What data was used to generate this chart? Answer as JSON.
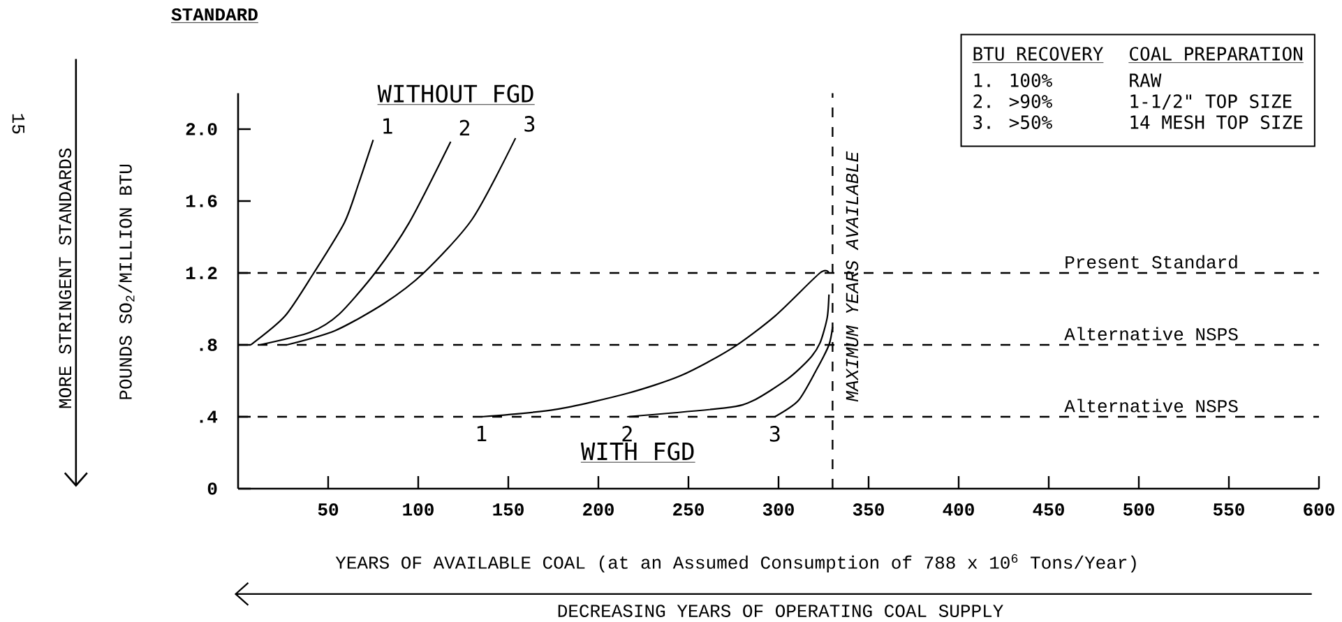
{
  "chart_data": {
    "type": "line",
    "xlabel": "YEARS OF AVAILABLE COAL (at an Assumed Consumption of 788 x 10$^{6}$ Tons/Year)",
    "ylabel": "POUNDS SO$_{2}$/MILLION BTU",
    "xlim": [
      0,
      600
    ],
    "ylim": [
      0,
      2.2
    ],
    "xticks": [
      50,
      100,
      150,
      200,
      250,
      300,
      350,
      400,
      450,
      500,
      550,
      600
    ],
    "yticks": [
      0,
      {
        "value": 0.4,
        "label": ".4"
      },
      {
        "value": 0.8,
        "label": ".8"
      },
      1.2,
      1.6,
      {
        "value": 2,
        "label": "2.0"
      }
    ],
    "marker": "none",
    "line_style": "solid",
    "series": [
      {
        "name": "1",
        "color": "#000000",
        "x": [
          7,
          26,
          42,
          59,
          67,
          75
        ],
        "values": [
          0.8,
          0.96,
          1.2,
          1.48,
          1.7,
          1.94
        ]
      },
      {
        "name": "2",
        "color": "#000000",
        "x": [
          12,
          40,
          56,
          76,
          95,
          118
        ],
        "values": [
          0.8,
          0.87,
          0.97,
          1.2,
          1.48,
          1.93
        ]
      },
      {
        "name": "3",
        "color": "#000000",
        "x": [
          27,
          54,
          81,
          103,
          130,
          154
        ],
        "values": [
          0.8,
          0.88,
          1.03,
          1.2,
          1.5,
          1.95
        ]
      },
      {
        "name": "1",
        "color": "#000000",
        "x": [
          135,
          176,
          216,
          246,
          274,
          298,
          323,
          328
        ],
        "values": [
          0.4,
          0.44,
          0.53,
          0.63,
          0.78,
          0.96,
          1.2,
          1.2
        ]
      },
      {
        "name": "2",
        "color": "#000000",
        "x": [
          216,
          271,
          286,
          305,
          317,
          323,
          327,
          328
        ],
        "values": [
          0.4,
          0.45,
          0.49,
          0.61,
          0.72,
          0.81,
          0.95,
          1.08
        ]
      },
      {
        "name": "3",
        "color": "#000000",
        "x": [
          298,
          311,
          321,
          328,
          330
        ],
        "values": [
          0.4,
          0.49,
          0.66,
          0.8,
          0.9
        ]
      }
    ],
    "ref_lines": [
      {
        "axis": "y",
        "value": 1.2,
        "label": "Present Standard",
        "line_style": "dashed"
      },
      {
        "axis": "y",
        "value": 0.8,
        "label": "Alternative NSPS",
        "line_style": "dashed"
      },
      {
        "axis": "y",
        "value": 0.4,
        "label": "Alternative NSPS",
        "line_style": "dashed"
      },
      {
        "axis": "x",
        "value": 330,
        "label": "MAXIMUM YEARS AVAILABLE",
        "line_style": "dashed"
      }
    ],
    "annotations": [
      "STANDARD",
      "15",
      "MORE STRINGENT STANDARDS",
      "DECREASING YEARS OF OPERATING COAL SUPPLY",
      "BTU RECOVERY",
      "COAL PREPARATION",
      "1. 100%",
      "RAW",
      "2. >90%",
      "1-1/2\" TOP SIZE",
      "3. >50%",
      "14 MESH TOP SIZE",
      "WITHOUT FGD",
      "WITH FGD"
    ]
  }
}
